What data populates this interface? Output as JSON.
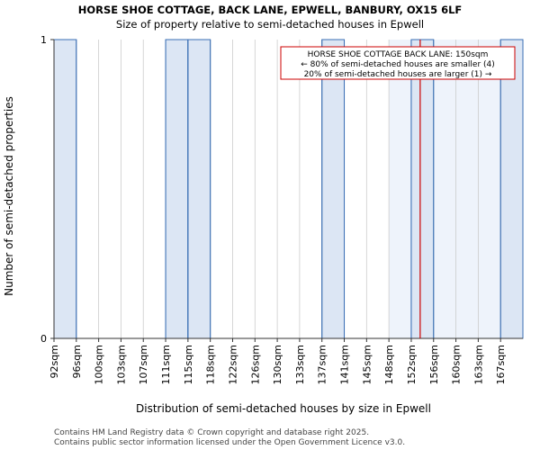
{
  "chart_data": {
    "type": "bar",
    "title": "HORSE SHOE COTTAGE, BACK LANE, EPWELL, BANBURY, OX15 6LF",
    "subtitle": "Size of property relative to semi-detached houses in Epwell",
    "xlabel": "Distribution of semi-detached houses by size in Epwell",
    "ylabel": "Number of semi-detached properties",
    "categories": [
      "92sqm",
      "96sqm",
      "100sqm",
      "103sqm",
      "107sqm",
      "111sqm",
      "115sqm",
      "118sqm",
      "122sqm",
      "126sqm",
      "130sqm",
      "133sqm",
      "137sqm",
      "141sqm",
      "145sqm",
      "148sqm",
      "152sqm",
      "156sqm",
      "160sqm",
      "163sqm",
      "167sqm"
    ],
    "values": [
      1,
      0,
      0,
      0,
      0,
      1,
      1,
      0,
      0,
      0,
      0,
      0,
      1,
      0,
      0,
      0,
      1,
      0,
      0,
      0,
      1
    ],
    "ylim": [
      0,
      1
    ],
    "yticks": [
      "0",
      "1"
    ],
    "highlight_after_index": 15,
    "marker_index_position": 16.4,
    "annotation": {
      "line1": "HORSE SHOE COTTAGE BACK LANE: 150sqm",
      "line2": "← 80% of semi-detached houses are smaller (4)",
      "line3": "20% of semi-detached houses are larger (1) →"
    },
    "footer": {
      "line1": "Contains HM Land Registry data © Crown copyright and database right 2025.",
      "line2": "Contains public sector information licensed under the Open Government Licence v3.0."
    },
    "colors": {
      "bar": "#dce6f4",
      "bar_edge": "#3a6fb5",
      "highlight": "#eef3fb",
      "marker": "#cc0000",
      "grid": "#cccccc"
    }
  }
}
